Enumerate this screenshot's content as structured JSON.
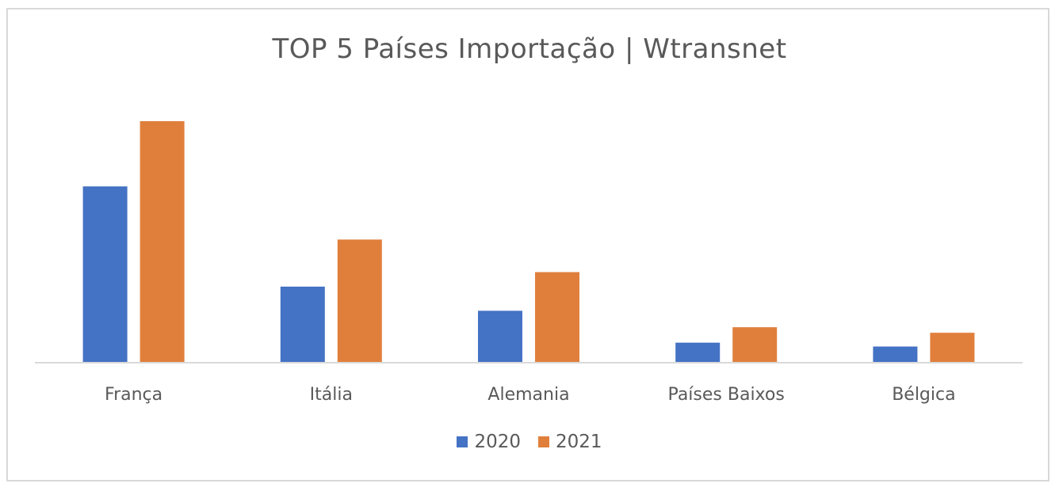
{
  "chart_data": {
    "type": "bar",
    "title": "TOP 5 Países Importação | Wtransnet",
    "categories": [
      "França",
      "Itália",
      "Alemania",
      "Países Baixos",
      "Bélgica"
    ],
    "series": [
      {
        "name": "2020",
        "color": "#4472c4",
        "values": [
          73,
          31.5,
          21.5,
          8.3,
          6.7
        ]
      },
      {
        "name": "2021",
        "color": "#e07f3c",
        "values": [
          100,
          51,
          37.5,
          14.7,
          12.4
        ]
      }
    ],
    "ylim": [
      0,
      100
    ],
    "xlabel": "",
    "ylabel": "",
    "grid": false,
    "legend": "bottom"
  }
}
